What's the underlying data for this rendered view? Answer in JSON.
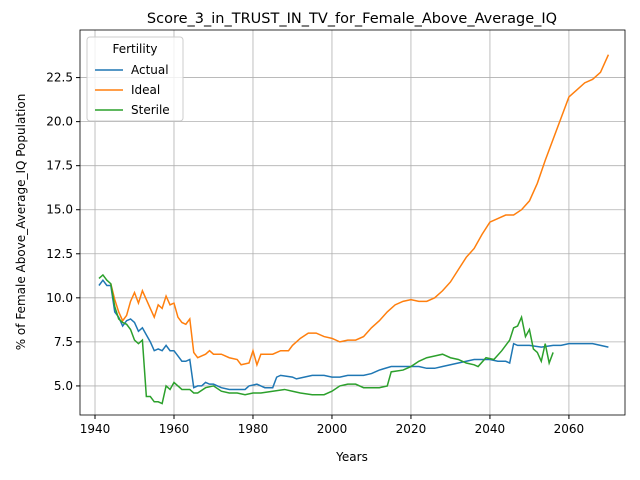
{
  "chart_data": {
    "type": "line",
    "title": "Score_3_in_TRUST_IN_TV_for_Female_Above_Average_IQ",
    "x_label": "Years",
    "y_label": "% of Female Above_Average_IQ Population",
    "xlim": [
      1936.2,
      2074.2
    ],
    "ylim": [
      3.35,
      25.2
    ],
    "xticks": [
      1940,
      1960,
      1980,
      2000,
      2020,
      2040,
      2060
    ],
    "yticks": [
      {
        "value": 5,
        "label": "5.0"
      },
      {
        "value": 7.5,
        "label": "7.5"
      },
      {
        "value": 10,
        "label": "10.0"
      },
      {
        "value": 12.5,
        "label": "12.5"
      },
      {
        "value": 15,
        "label": "15.0"
      },
      {
        "value": 17.5,
        "label": "17.5"
      },
      {
        "value": 20,
        "label": "20.0"
      },
      {
        "value": 22.5,
        "label": "22.5"
      }
    ],
    "grid": true,
    "legend_title": "Fertility",
    "legend_position": "upper-left",
    "series": [
      {
        "name": "Actual",
        "color": "#1f77b4",
        "x": [
          1941,
          1942,
          1943,
          1944,
          1945,
          1946,
          1947,
          1948,
          1949,
          1950,
          1951,
          1952,
          1953,
          1954,
          1955,
          1956,
          1957,
          1958,
          1959,
          1960,
          1961,
          1962,
          1963,
          1964,
          1965,
          1966,
          1967,
          1968,
          1969,
          1970,
          1972,
          1974,
          1976,
          1978,
          1979,
          1981,
          1983,
          1985,
          1986,
          1987,
          1990,
          1991,
          1993,
          1995,
          1998,
          2000,
          2002,
          2004,
          2006,
          2008,
          2010,
          2012,
          2015,
          2018,
          2020,
          2022,
          2024,
          2026,
          2028,
          2030,
          2032,
          2034,
          2036,
          2038,
          2040,
          2042,
          2044,
          2045,
          2046,
          2047,
          2050,
          2053,
          2056,
          2058,
          2060,
          2062,
          2064,
          2066,
          2068,
          2070
        ],
        "values": [
          10.7,
          11.0,
          10.7,
          10.7,
          9.2,
          8.9,
          8.4,
          8.7,
          8.8,
          8.6,
          8.1,
          8.3,
          7.9,
          7.5,
          7.0,
          7.1,
          7.0,
          7.3,
          7.0,
          7.0,
          6.7,
          6.4,
          6.4,
          6.5,
          4.9,
          5.0,
          5.0,
          5.2,
          5.1,
          5.1,
          4.9,
          4.8,
          4.8,
          4.8,
          5.0,
          5.1,
          4.9,
          4.9,
          5.5,
          5.6,
          5.5,
          5.4,
          5.5,
          5.6,
          5.6,
          5.5,
          5.5,
          5.6,
          5.6,
          5.6,
          5.7,
          5.9,
          6.1,
          6.1,
          6.1,
          6.1,
          6.0,
          6.0,
          6.1,
          6.2,
          6.3,
          6.4,
          6.5,
          6.5,
          6.5,
          6.4,
          6.4,
          6.3,
          7.4,
          7.3,
          7.3,
          7.2,
          7.3,
          7.3,
          7.4,
          7.4,
          7.4,
          7.4,
          7.3,
          7.2
        ]
      },
      {
        "name": "Ideal",
        "color": "#ff7f0e",
        "x": [
          1944,
          1945,
          1946,
          1947,
          1948,
          1949,
          1950,
          1951,
          1952,
          1953,
          1954,
          1955,
          1956,
          1957,
          1958,
          1959,
          1960,
          1961,
          1962,
          1963,
          1964,
          1965,
          1966,
          1967,
          1968,
          1969,
          1970,
          1972,
          1974,
          1976,
          1977,
          1979,
          1980,
          1981,
          1982,
          1985,
          1987,
          1989,
          1990,
          1992,
          1994,
          1996,
          1998,
          2000,
          2002,
          2004,
          2006,
          2008,
          2010,
          2012,
          2014,
          2016,
          2018,
          2020,
          2022,
          2024,
          2026,
          2028,
          2030,
          2032,
          2034,
          2036,
          2038,
          2040,
          2042,
          2044,
          2046,
          2048,
          2050,
          2052,
          2054,
          2056,
          2058,
          2060,
          2062,
          2064,
          2066,
          2068,
          2070
        ],
        "values": [
          10.8,
          9.9,
          9.2,
          8.7,
          9.0,
          9.8,
          10.3,
          9.7,
          10.4,
          9.9,
          9.4,
          8.9,
          9.6,
          9.4,
          10.1,
          9.6,
          9.7,
          8.9,
          8.6,
          8.5,
          8.8,
          6.9,
          6.6,
          6.7,
          6.8,
          7.0,
          6.8,
          6.8,
          6.6,
          6.5,
          6.2,
          6.3,
          7.0,
          6.2,
          6.8,
          6.8,
          7.0,
          7.0,
          7.3,
          7.7,
          8.0,
          8.0,
          7.8,
          7.7,
          7.5,
          7.6,
          7.6,
          7.8,
          8.3,
          8.7,
          9.2,
          9.6,
          9.8,
          9.9,
          9.8,
          9.8,
          10.0,
          10.4,
          10.9,
          11.6,
          12.3,
          12.8,
          13.6,
          14.3,
          14.5,
          14.7,
          14.7,
          15.0,
          15.5,
          16.5,
          17.8,
          19.0,
          20.2,
          21.4,
          21.8,
          22.2,
          22.4,
          22.8,
          23.8
        ]
      },
      {
        "name": "Sterile",
        "color": "#2ca02c",
        "x": [
          1941,
          1942,
          1943,
          1944,
          1945,
          1946,
          1947,
          1948,
          1949,
          1950,
          1951,
          1952,
          1953,
          1954,
          1955,
          1956,
          1957,
          1958,
          1959,
          1960,
          1961,
          1962,
          1964,
          1965,
          1966,
          1968,
          1970,
          1972,
          1974,
          1976,
          1978,
          1980,
          1982,
          1985,
          1988,
          1990,
          1992,
          1995,
          1998,
          2000,
          2002,
          2004,
          2006,
          2008,
          2010,
          2012,
          2014,
          2015,
          2018,
          2020,
          2022,
          2024,
          2026,
          2028,
          2030,
          2032,
          2034,
          2036,
          2037,
          2039,
          2041,
          2043,
          2045,
          2046,
          2047,
          2048,
          2049,
          2050,
          2051,
          2052,
          2053,
          2054,
          2055,
          2056
        ],
        "values": [
          11.1,
          11.3,
          11.0,
          10.8,
          9.5,
          8.8,
          8.6,
          8.5,
          8.2,
          7.6,
          7.4,
          7.6,
          4.4,
          4.4,
          4.1,
          4.1,
          4.0,
          5.0,
          4.8,
          5.2,
          5.0,
          4.8,
          4.8,
          4.6,
          4.6,
          4.9,
          5.0,
          4.7,
          4.6,
          4.6,
          4.5,
          4.6,
          4.6,
          4.7,
          4.8,
          4.7,
          4.6,
          4.5,
          4.5,
          4.7,
          5.0,
          5.1,
          5.1,
          4.9,
          4.9,
          4.9,
          5.0,
          5.8,
          5.9,
          6.1,
          6.4,
          6.6,
          6.7,
          6.8,
          6.6,
          6.5,
          6.3,
          6.2,
          6.1,
          6.6,
          6.5,
          7.0,
          7.6,
          8.3,
          8.4,
          8.9,
          7.8,
          8.2,
          7.1,
          6.9,
          6.4,
          7.4,
          6.3,
          6.9
        ]
      }
    ]
  }
}
